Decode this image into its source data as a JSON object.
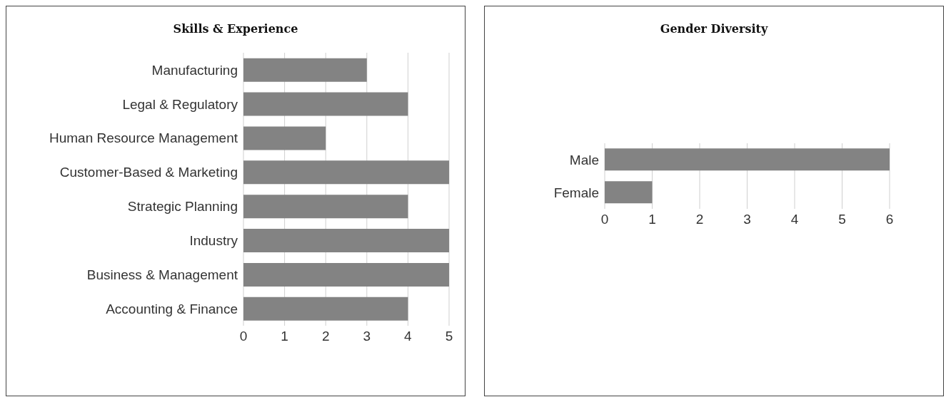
{
  "chart_data": [
    {
      "type": "bar",
      "orientation": "horizontal",
      "title": "Skills & Experience",
      "categories": [
        "Manufacturing",
        "Legal & Regulatory",
        "Human Resource Management",
        "Customer-Based & Marketing",
        "Strategic Planning",
        "Industry",
        "Business & Management",
        "Accounting & Finance"
      ],
      "values": [
        3,
        4,
        2,
        5,
        4,
        5,
        5,
        4
      ],
      "color": "#838383",
      "xlim": [
        0,
        5
      ],
      "xticks": [
        0,
        1,
        2,
        3,
        4,
        5
      ],
      "grid": "x"
    },
    {
      "type": "bar",
      "orientation": "horizontal",
      "title": "Gender Diversity",
      "categories": [
        "Male",
        "Female"
      ],
      "values": [
        6,
        1
      ],
      "color": "#838383",
      "xlim": [
        0,
        6
      ],
      "xticks": [
        0,
        1,
        2,
        3,
        4,
        5,
        6
      ],
      "grid": "x"
    }
  ]
}
